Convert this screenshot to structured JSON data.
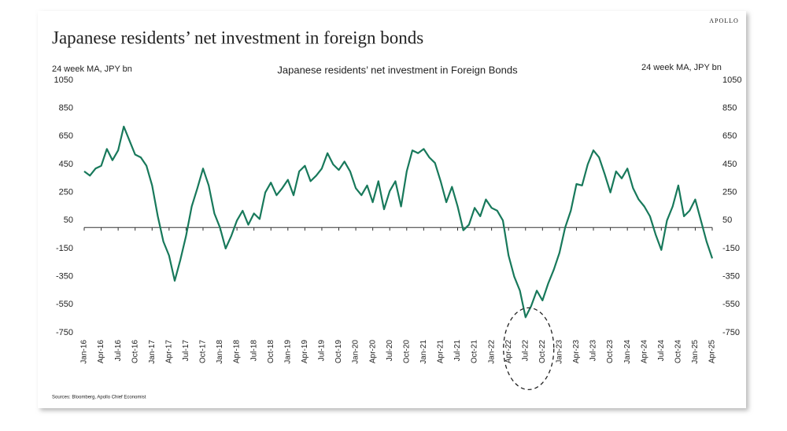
{
  "apollo": "APOLLO",
  "source": "Sources: Bloomberg, Apollo Chief Economist",
  "chart_data": {
    "type": "line",
    "page_title": "Japanese residents’ net investment in foreign bonds",
    "title": "Japanese residents’ net investment in Foreign Bonds",
    "y_label": "24 week MA, JPY bn",
    "y2_label": "24 week MA, JPY bn",
    "categories": [
      "Jan-16",
      null,
      null,
      "Apr-16",
      null,
      null,
      "Jul-16",
      null,
      null,
      "Oct-16",
      null,
      null,
      "Jan-17",
      null,
      null,
      "Apr-17",
      null,
      null,
      "Jul-17",
      null,
      null,
      "Oct-17",
      null,
      null,
      "Jan-18",
      null,
      null,
      "Apr-18",
      null,
      null,
      "Jul-18",
      null,
      null,
      "Oct-18",
      null,
      null,
      "Jan-19",
      null,
      null,
      "Apr-19",
      null,
      null,
      "Jul-19",
      null,
      null,
      "Oct-19",
      null,
      null,
      "Jan-20",
      null,
      null,
      "Apr-20",
      null,
      null,
      "Jul-20",
      null,
      null,
      "Oct-20",
      null,
      null,
      "Jan-21",
      null,
      null,
      "Apr-21",
      null,
      null,
      "Jul-21",
      null,
      null,
      "Oct-21",
      null,
      null,
      "Jan-22",
      null,
      null,
      "Apr-22",
      null,
      null,
      "Jul-22",
      null,
      null,
      "Oct-22",
      null,
      null,
      "Jan-23",
      null,
      null,
      "Apr-23",
      null,
      null,
      "Jul-23",
      null,
      null,
      "Oct-23",
      null,
      null,
      "Jan-24",
      null,
      null,
      "Apr-24",
      null,
      null,
      "Jul-24",
      null,
      null,
      "Oct-24",
      null,
      null,
      "Jan-25",
      null,
      null,
      "Apr-25"
    ],
    "values": [
      400,
      370,
      420,
      440,
      560,
      480,
      550,
      720,
      620,
      520,
      500,
      440,
      300,
      80,
      -100,
      -200,
      -380,
      -230,
      -60,
      150,
      280,
      420,
      300,
      100,
      0,
      -150,
      -60,
      50,
      120,
      20,
      100,
      60,
      250,
      320,
      230,
      280,
      340,
      230,
      400,
      440,
      330,
      370,
      420,
      530,
      450,
      410,
      470,
      400,
      280,
      230,
      300,
      180,
      330,
      130,
      260,
      330,
      150,
      400,
      550,
      530,
      560,
      500,
      460,
      330,
      180,
      290,
      150,
      -20,
      20,
      140,
      80,
      200,
      140,
      120,
      50,
      -200,
      -350,
      -450,
      -640,
      -560,
      -450,
      -520,
      -400,
      -300,
      -180,
      0,
      120,
      310,
      300,
      450,
      550,
      500,
      380,
      250,
      400,
      350,
      420,
      280,
      200,
      150,
      80,
      -50,
      -160,
      50,
      150,
      300,
      80,
      120,
      200,
      50,
      -100,
      -220
    ],
    "color": "#18795b",
    "ylim": [
      -750,
      1050
    ],
    "yticks": [
      1050,
      850,
      650,
      450,
      250,
      50,
      -150,
      -350,
      -550,
      -750
    ],
    "y2lim": [
      -750,
      1050
    ],
    "y2ticks": [
      1050,
      850,
      650,
      450,
      250,
      50,
      -150,
      -350,
      -550,
      -750
    ]
  }
}
